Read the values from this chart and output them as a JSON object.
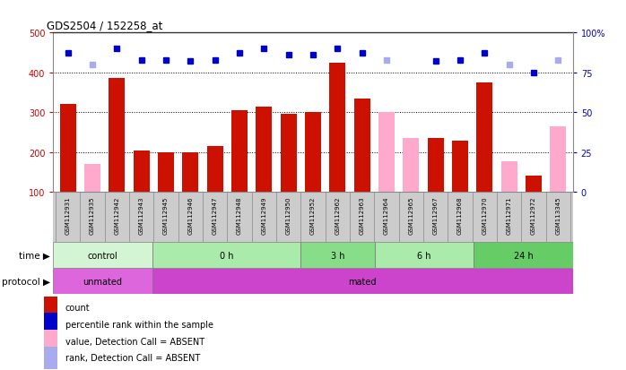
{
  "title": "GDS2504 / 152258_at",
  "samples": [
    "GSM112931",
    "GSM112935",
    "GSM112942",
    "GSM112943",
    "GSM112945",
    "GSM112946",
    "GSM112947",
    "GSM112948",
    "GSM112949",
    "GSM112950",
    "GSM112952",
    "GSM112962",
    "GSM112963",
    "GSM112964",
    "GSM112965",
    "GSM112967",
    "GSM112968",
    "GSM112970",
    "GSM112971",
    "GSM112972",
    "GSM113345"
  ],
  "bar_values": [
    320,
    0,
    385,
    205,
    200,
    200,
    215,
    305,
    315,
    295,
    300,
    425,
    335,
    0,
    0,
    235,
    228,
    375,
    0,
    140,
    0
  ],
  "bar_absent": [
    0,
    170,
    0,
    0,
    0,
    0,
    0,
    0,
    0,
    0,
    0,
    0,
    0,
    300,
    235,
    0,
    0,
    0,
    178,
    0,
    265
  ],
  "bar_detection": [
    "P",
    "A",
    "P",
    "P",
    "P",
    "P",
    "P",
    "P",
    "P",
    "P",
    "P",
    "P",
    "P",
    "A",
    "A",
    "P",
    "P",
    "P",
    "A",
    "P",
    "A"
  ],
  "pct_present": [
    87,
    0,
    90,
    83,
    83,
    82,
    83,
    87,
    90,
    86,
    86,
    90,
    87,
    0,
    0,
    82,
    83,
    87,
    0,
    75,
    0
  ],
  "pct_absent": [
    0,
    80,
    0,
    0,
    0,
    0,
    0,
    0,
    0,
    0,
    0,
    0,
    0,
    83,
    0,
    0,
    0,
    0,
    80,
    0,
    83
  ],
  "ylim_left": [
    100,
    500
  ],
  "ylim_right": [
    0,
    100
  ],
  "yticks_left": [
    100,
    200,
    300,
    400,
    500
  ],
  "yticks_right": [
    0,
    25,
    50,
    75,
    100
  ],
  "time_groups": [
    {
      "label": "control",
      "start": 0,
      "end": 4,
      "color": "#d4f5d4"
    },
    {
      "label": "0 h",
      "start": 4,
      "end": 10,
      "color": "#aaeaaa"
    },
    {
      "label": "3 h",
      "start": 10,
      "end": 13,
      "color": "#88dd88"
    },
    {
      "label": "6 h",
      "start": 13,
      "end": 17,
      "color": "#aaeaaa"
    },
    {
      "label": "24 h",
      "start": 17,
      "end": 21,
      "color": "#66cc66"
    }
  ],
  "protocol_groups": [
    {
      "label": "unmated",
      "start": 0,
      "end": 4,
      "color": "#dd66dd"
    },
    {
      "label": "mated",
      "start": 4,
      "end": 21,
      "color": "#cc44cc"
    }
  ],
  "bar_color_present": "#cc1100",
  "bar_color_absent": "#ffaacc",
  "dot_color_present": "#0000cc",
  "dot_color_absent": "#aaaaee",
  "axis_left_color": "#cc0000",
  "axis_right_color": "#0000bb",
  "plot_bg": "#ffffff",
  "label_bg": "#cccccc",
  "fig_bg": "#ffffff"
}
